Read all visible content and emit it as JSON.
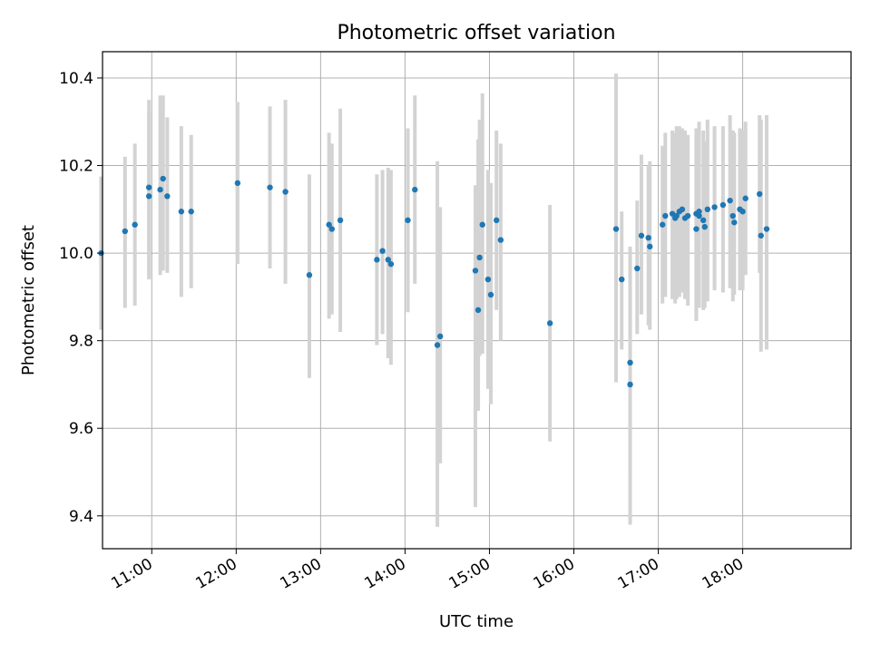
{
  "chart_data": {
    "type": "scatter",
    "title": "Photometric offset variation",
    "xlabel": "UTC time",
    "ylabel": "Photometric offset",
    "grid": true,
    "colors": {
      "points": "#1f77b4",
      "errorbars": "#d3d3d3",
      "grid": "#b0b0b0"
    },
    "xlim": [
      "10:25",
      "19:17"
    ],
    "ylim": [
      9.325,
      10.46
    ],
    "x_ticks": [
      "11:00",
      "12:00",
      "13:00",
      "14:00",
      "15:00",
      "16:00",
      "17:00",
      "18:00"
    ],
    "y_ticks": [
      "9.4",
      "9.6",
      "9.8",
      "10.0",
      "10.2",
      "10.4"
    ],
    "series": [
      {
        "x": [
          "10:24",
          "10:41",
          "10:48",
          "10:58",
          "10:58",
          "11:06",
          "11:08",
          "11:11",
          "11:21",
          "11:28",
          "12:01",
          "12:24",
          "12:35",
          "12:52",
          "13:06",
          "13:08",
          "13:14",
          "13:40",
          "13:44",
          "13:48",
          "13:50",
          "14:02",
          "14:07",
          "14:23",
          "14:25",
          "14:50",
          "14:52",
          "14:53",
          "14:55",
          "14:59",
          "15:01",
          "15:05",
          "15:08",
          "15:43",
          "16:30",
          "16:34",
          "16:40",
          "16:40",
          "16:45",
          "16:48",
          "16:53",
          "16:54",
          "17:03",
          "17:05",
          "17:10",
          "17:12",
          "17:13",
          "17:15",
          "17:17",
          "17:19",
          "17:21",
          "17:27",
          "17:27",
          "17:29",
          "17:29",
          "17:32",
          "17:33",
          "17:35",
          "17:40",
          "17:46",
          "17:51",
          "17:53",
          "17:54",
          "17:58",
          "18:00",
          "18:02",
          "18:12",
          "18:13",
          "18:17"
        ],
        "y": [
          10.0,
          10.05,
          10.065,
          10.13,
          10.15,
          10.145,
          10.17,
          10.13,
          10.095,
          10.095,
          10.16,
          10.15,
          10.14,
          9.95,
          10.065,
          10.055,
          10.075,
          9.985,
          10.005,
          9.985,
          9.975,
          10.075,
          10.145,
          9.79,
          9.81,
          9.96,
          9.87,
          9.99,
          10.065,
          9.94,
          9.905,
          10.075,
          10.03,
          9.84,
          10.055,
          9.94,
          9.7,
          9.75,
          9.965,
          10.04,
          10.035,
          10.015,
          10.065,
          10.085,
          10.09,
          10.08,
          10.085,
          10.095,
          10.1,
          10.08,
          10.085,
          10.09,
          10.055,
          10.095,
          10.085,
          10.075,
          10.06,
          10.1,
          10.105,
          10.11,
          10.12,
          10.085,
          10.07,
          10.1,
          10.095,
          10.125,
          10.135,
          10.04,
          10.055
        ],
        "yerr_low": [
          9.825,
          9.875,
          9.88,
          9.94,
          9.945,
          9.95,
          9.96,
          9.955,
          9.9,
          9.92,
          9.975,
          9.965,
          9.93,
          9.715,
          9.85,
          9.86,
          9.82,
          9.79,
          9.815,
          9.76,
          9.745,
          9.865,
          9.93,
          9.375,
          9.52,
          9.42,
          9.64,
          9.765,
          9.77,
          9.69,
          9.655,
          9.87,
          9.8,
          9.57,
          9.705,
          9.78,
          9.38,
          9.495,
          9.815,
          9.86,
          9.835,
          9.825,
          9.885,
          9.9,
          9.895,
          9.885,
          9.895,
          9.9,
          9.91,
          9.895,
          9.88,
          9.855,
          9.845,
          9.885,
          9.875,
          9.87,
          9.875,
          9.89,
          9.915,
          9.91,
          9.92,
          9.89,
          9.905,
          9.915,
          9.915,
          9.95,
          9.955,
          9.775,
          9.78
        ],
        "yerr_high": [
          10.175,
          10.22,
          10.25,
          10.32,
          10.35,
          10.36,
          10.36,
          10.31,
          10.29,
          10.27,
          10.345,
          10.335,
          10.35,
          10.18,
          10.275,
          10.25,
          10.33,
          10.18,
          10.19,
          10.195,
          10.19,
          10.285,
          10.36,
          10.21,
          10.105,
          10.155,
          10.26,
          10.305,
          10.365,
          10.19,
          10.16,
          10.28,
          10.25,
          10.11,
          10.41,
          10.095,
          10.015,
          10.0,
          10.12,
          10.225,
          10.2,
          10.21,
          10.245,
          10.275,
          10.28,
          10.275,
          10.29,
          10.29,
          10.285,
          10.28,
          10.27,
          10.285,
          10.265,
          10.3,
          10.29,
          10.28,
          10.255,
          10.305,
          10.29,
          10.29,
          10.315,
          10.28,
          10.275,
          10.285,
          10.28,
          10.3,
          10.315,
          10.305,
          10.315
        ]
      }
    ]
  }
}
